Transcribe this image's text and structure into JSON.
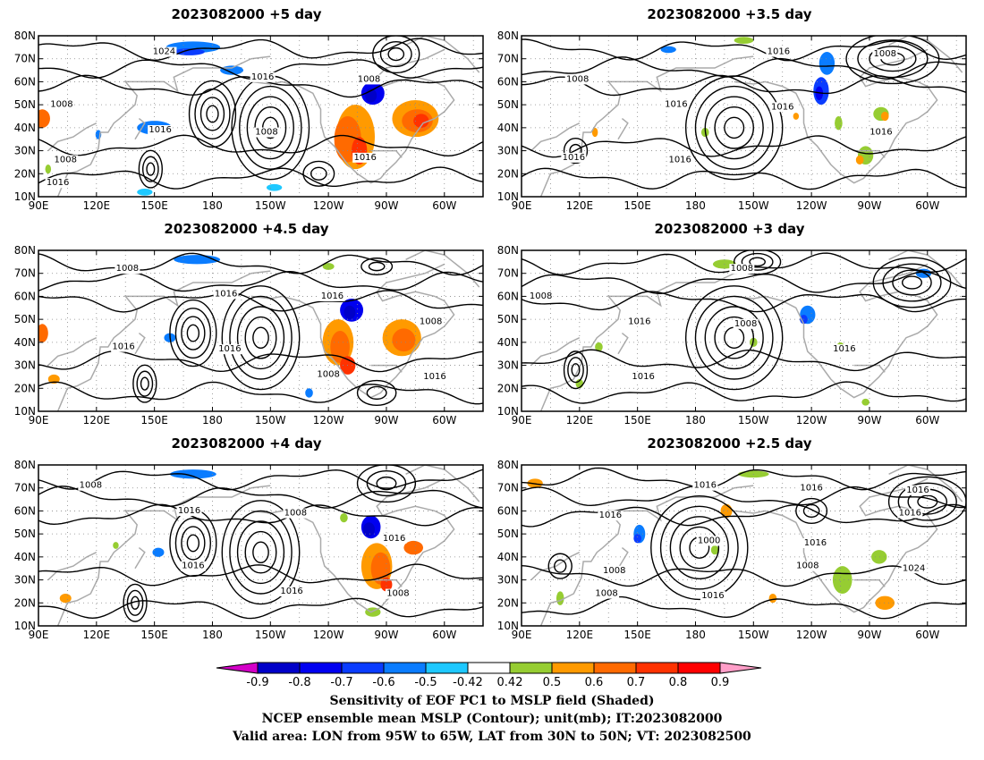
{
  "chart_data": {
    "type": "heatmap",
    "panels": [
      {
        "title": "2023082000 +5 day",
        "contour_labels": [
          "1016",
          "1016",
          "1016",
          "1016",
          "1008",
          "1024",
          "1008",
          "1008",
          "1008"
        ]
      },
      {
        "title": "2023082000 +3.5 day",
        "contour_labels": [
          "1016",
          "1016",
          "1016",
          "1016",
          "1008",
          "1016",
          "1016",
          "1008"
        ]
      },
      {
        "title": "2023082000 +4.5 day",
        "contour_labels": [
          "1016",
          "1016",
          "1008",
          "1008",
          "1008",
          "1016",
          "1016",
          "1016"
        ]
      },
      {
        "title": "2023082000 +3 day",
        "contour_labels": [
          "1016",
          "1008",
          "1016",
          "1008",
          "1016",
          "1008"
        ]
      },
      {
        "title": "2023082000 +4 day",
        "contour_labels": [
          "1016",
          "1016",
          "1016",
          "1008",
          "1016",
          "1008",
          "1008"
        ]
      },
      {
        "title": "2023082000 +2.5 day",
        "contour_labels": [
          "1016",
          "1008",
          "1016",
          "1008",
          "1000",
          "1016",
          "1024",
          "1016",
          "1016",
          "1016",
          "1016",
          "1008"
        ]
      }
    ],
    "x_ticks": [
      "90E",
      "120E",
      "150E",
      "180",
      "150W",
      "120W",
      "90W",
      "60W"
    ],
    "y_ticks": [
      "10N",
      "20N",
      "30N",
      "40N",
      "50N",
      "60N",
      "70N",
      "80N"
    ],
    "xlim": [
      90,
      320
    ],
    "ylim": [
      10,
      80
    ],
    "colorbar": {
      "levels": [
        "-0.9",
        "-0.8",
        "-0.7",
        "-0.6",
        "-0.5",
        "-0.42",
        "0.42",
        "0.5",
        "0.6",
        "0.7",
        "0.8",
        "0.9"
      ],
      "colors": [
        "#d400c8",
        "#0000c8",
        "#0000f0",
        "#0a3cff",
        "#0a7cff",
        "#1ec8ff",
        "#ffffff",
        "#96cd32",
        "#ff9a00",
        "#ff6a00",
        "#ff3200",
        "#ff0000",
        "#ff9ec8"
      ]
    },
    "caption_lines": [
      "Sensitivity of EOF PC1 to MSLP field (Shaded)",
      "NCEP ensemble mean MSLP (Contour); unit(mb); IT:2023082000",
      "Valid area: LON from 95W to 65W, LAT from 30N to 50N; VT: 2023082500"
    ],
    "colors": {
      "contour": "#000000",
      "coast": "#aaaaaa",
      "grid": "#888888"
    }
  }
}
